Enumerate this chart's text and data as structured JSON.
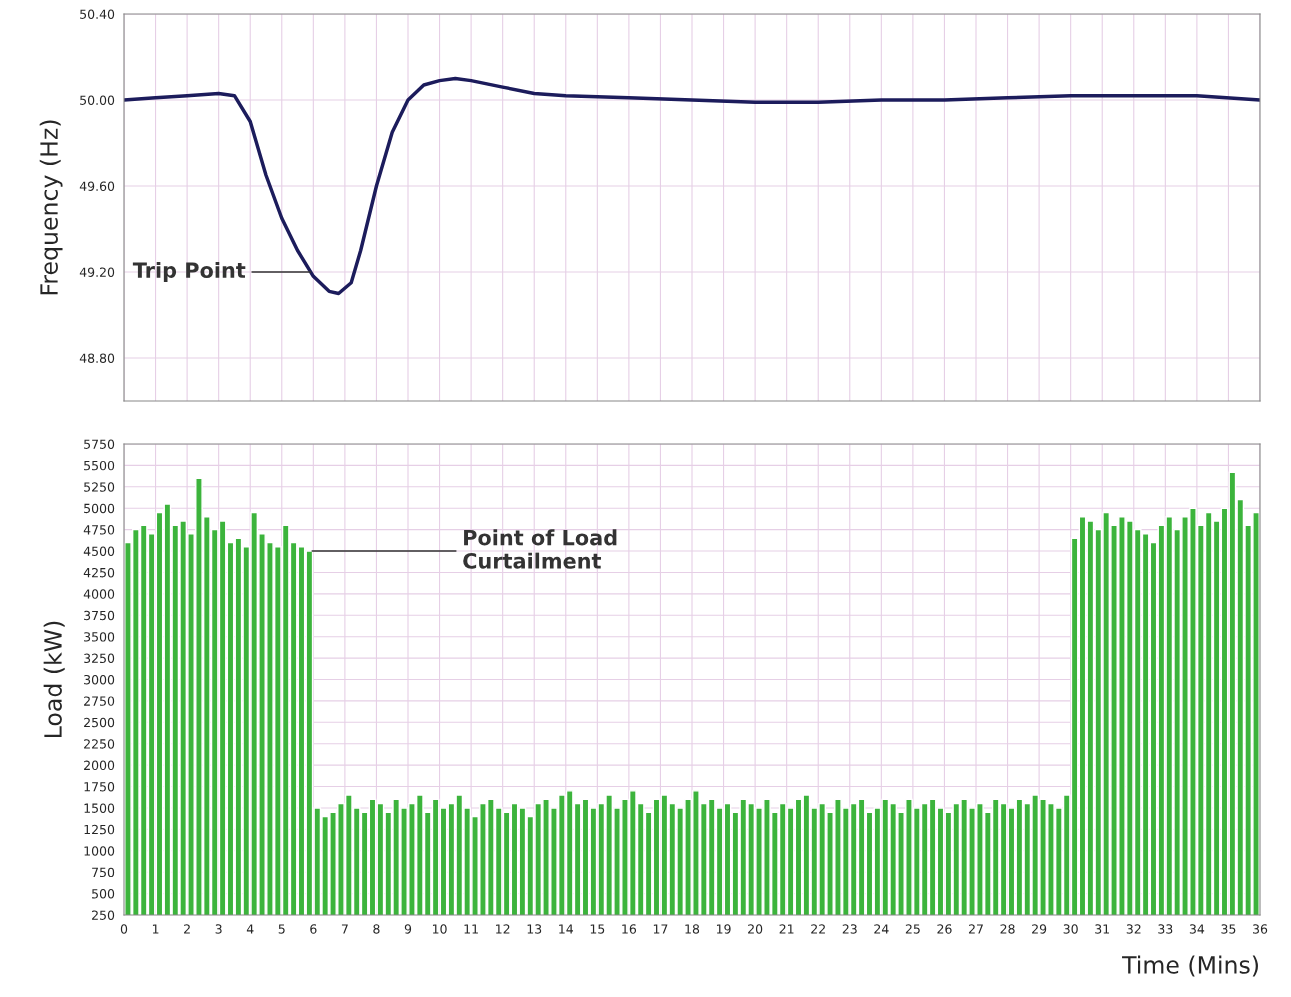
{
  "chart_data": [
    {
      "type": "line",
      "ylabel": "Frequency (Hz)",
      "tick_labels": "y",
      "grid": true,
      "line_style": "solid",
      "x": [
        0,
        1,
        2,
        3,
        3.5,
        4,
        4.5,
        5,
        5.5,
        6,
        6.5,
        6.8,
        7.2,
        7.5,
        8,
        8.5,
        9,
        9.5,
        10,
        10.5,
        11,
        12,
        13,
        14,
        16,
        18,
        20,
        22,
        24,
        26,
        28,
        30,
        32,
        34,
        36
      ],
      "series": [
        {
          "color": "#1c1c5c",
          "values": [
            50.0,
            50.01,
            50.02,
            50.03,
            50.02,
            49.9,
            49.65,
            49.45,
            49.3,
            49.18,
            49.11,
            49.1,
            49.15,
            49.3,
            49.6,
            49.85,
            50.0,
            50.07,
            50.09,
            50.1,
            50.09,
            50.06,
            50.03,
            50.02,
            50.01,
            50.0,
            49.99,
            49.99,
            50.0,
            50.0,
            50.01,
            50.02,
            50.02,
            50.02,
            50.0
          ]
        }
      ],
      "xlim": [
        0,
        36
      ],
      "xticks": [
        0,
        1,
        2,
        3,
        4,
        5,
        6,
        7,
        8,
        9,
        10,
        11,
        12,
        13,
        14,
        15,
        16,
        17,
        18,
        19,
        20,
        21,
        22,
        23,
        24,
        25,
        26,
        27,
        28,
        29,
        30,
        31,
        32,
        33,
        34,
        35,
        36
      ],
      "ylim": [
        48.6,
        50.4
      ],
      "yticks": [
        {
          "value": 48.8,
          "label": "48.80"
        },
        {
          "value": 49.2,
          "label": "49.20"
        },
        {
          "value": 49.6,
          "label": "49.60"
        },
        {
          "value": 50.0,
          "label": "50.00"
        },
        {
          "value": 50.4,
          "label": "50.40"
        }
      ],
      "annotations": [
        {
          "text": "Trip Point",
          "x": 6.0,
          "y": 49.2
        }
      ]
    },
    {
      "type": "bar",
      "ylabel": "Load (kW)",
      "xlabel": "Time (Mins)",
      "grid": true,
      "x": [
        0.125,
        0.375,
        0.625,
        0.875,
        1.125,
        1.375,
        1.625,
        1.875,
        2.125,
        2.375,
        2.625,
        2.875,
        3.125,
        3.375,
        3.625,
        3.875,
        4.125,
        4.375,
        4.625,
        4.875,
        5.125,
        5.375,
        5.625,
        5.875,
        6.125,
        6.375,
        6.625,
        6.875,
        7.125,
        7.375,
        7.625,
        7.875,
        8.125,
        8.375,
        8.625,
        8.875,
        9.125,
        9.375,
        9.625,
        9.875,
        10.125,
        10.375,
        10.625,
        10.875,
        11.125,
        11.375,
        11.625,
        11.875,
        12.125,
        12.375,
        12.625,
        12.875,
        13.125,
        13.375,
        13.625,
        13.875,
        14.125,
        14.375,
        14.625,
        14.875,
        15.125,
        15.375,
        15.625,
        15.875,
        16.125,
        16.375,
        16.625,
        16.875,
        17.125,
        17.375,
        17.625,
        17.875,
        18.125,
        18.375,
        18.625,
        18.875,
        19.125,
        19.375,
        19.625,
        19.875,
        20.125,
        20.375,
        20.625,
        20.875,
        21.125,
        21.375,
        21.625,
        21.875,
        22.125,
        22.375,
        22.625,
        22.875,
        23.125,
        23.375,
        23.625,
        23.875,
        24.125,
        24.375,
        24.625,
        24.875,
        25.125,
        25.375,
        25.625,
        25.875,
        26.125,
        26.375,
        26.625,
        26.875,
        27.125,
        27.375,
        27.625,
        27.875,
        28.125,
        28.375,
        28.625,
        28.875,
        29.125,
        29.375,
        29.625,
        29.875,
        30.125,
        30.375,
        30.625,
        30.875,
        31.125,
        31.375,
        31.625,
        31.875,
        32.125,
        32.375,
        32.625,
        32.875,
        33.125,
        33.375,
        33.625,
        33.875,
        34.125,
        34.375,
        34.625,
        34.875,
        35.125,
        35.375,
        35.625,
        35.875
      ],
      "series": [
        {
          "color": "#3cb43c",
          "values": [
            4600,
            4750,
            4800,
            4700,
            4950,
            5050,
            4800,
            4850,
            4700,
            5350,
            4900,
            4750,
            4850,
            4600,
            4650,
            4550,
            4950,
            4700,
            4600,
            4550,
            4800,
            4600,
            4550,
            4500,
            1500,
            1400,
            1450,
            1550,
            1650,
            1500,
            1450,
            1600,
            1550,
            1450,
            1600,
            1500,
            1550,
            1650,
            1450,
            1600,
            1500,
            1550,
            1650,
            1500,
            1400,
            1550,
            1600,
            1500,
            1450,
            1550,
            1500,
            1400,
            1550,
            1600,
            1500,
            1650,
            1700,
            1550,
            1600,
            1500,
            1550,
            1650,
            1500,
            1600,
            1700,
            1550,
            1450,
            1600,
            1650,
            1550,
            1500,
            1600,
            1700,
            1550,
            1600,
            1500,
            1550,
            1450,
            1600,
            1550,
            1500,
            1600,
            1450,
            1550,
            1500,
            1600,
            1650,
            1500,
            1550,
            1450,
            1600,
            1500,
            1550,
            1600,
            1450,
            1500,
            1600,
            1550,
            1450,
            1600,
            1500,
            1550,
            1600,
            1500,
            1450,
            1550,
            1600,
            1500,
            1550,
            1450,
            1600,
            1550,
            1500,
            1600,
            1550,
            1650,
            1600,
            1550,
            1500,
            1650,
            4650,
            4900,
            4850,
            4750,
            4950,
            4800,
            4900,
            4850,
            4750,
            4700,
            4600,
            4800,
            4900,
            4750,
            4900,
            5000,
            4800,
            4950,
            4850,
            5000,
            5420,
            5100,
            4800,
            4950
          ]
        }
      ],
      "xlim": [
        0,
        36
      ],
      "xticks": [
        0,
        1,
        2,
        3,
        4,
        5,
        6,
        7,
        8,
        9,
        10,
        11,
        12,
        13,
        14,
        15,
        16,
        17,
        18,
        19,
        20,
        21,
        22,
        23,
        24,
        25,
        26,
        27,
        28,
        29,
        30,
        31,
        32,
        33,
        34,
        35,
        36
      ],
      "ylim": [
        250,
        5750
      ],
      "yticks": [
        250,
        500,
        750,
        1000,
        1250,
        1500,
        1750,
        2000,
        2250,
        2500,
        2750,
        3000,
        3250,
        3500,
        3750,
        4000,
        4250,
        4500,
        4750,
        5000,
        5250,
        5500,
        5750
      ],
      "annotations": [
        {
          "text": "Point of Load\nCurtailment",
          "x": 5.875,
          "y": 4500
        }
      ]
    }
  ]
}
